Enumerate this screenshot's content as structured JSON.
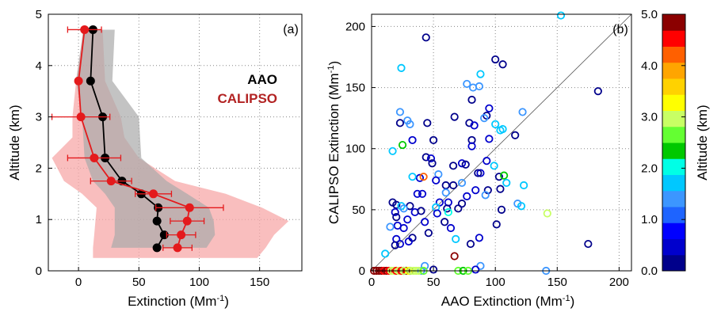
{
  "chart_data": [
    {
      "type": "line",
      "panel_label": "(a)",
      "xlabel": "Extinction (Mm",
      "xlabel_sup": "-1",
      "xlabel_end": ")",
      "ylabel": "Altitude (km)",
      "xlim": [
        -25,
        185
      ],
      "ylim": [
        0,
        5
      ],
      "xticks": [
        0,
        50,
        100,
        150
      ],
      "yticks": [
        0,
        1,
        2,
        3,
        4,
        5
      ],
      "grid": "dotted",
      "legend_position": "right",
      "series": [
        {
          "name": "AAO",
          "color": "#000000",
          "band_color": "#a9a9a9",
          "points": [
            {
              "alt": 0.45,
              "ext": 65
            },
            {
              "alt": 0.7,
              "ext": 71
            },
            {
              "alt": 0.97,
              "ext": 65
            },
            {
              "alt": 1.23,
              "ext": 66
            },
            {
              "alt": 1.5,
              "ext": 52
            },
            {
              "alt": 1.75,
              "ext": 36
            },
            {
              "alt": 2.2,
              "ext": 22
            },
            {
              "alt": 3.0,
              "ext": 20
            },
            {
              "alt": 3.7,
              "ext": 10
            },
            {
              "alt": 4.7,
              "ext": 12
            }
          ],
          "band": [
            {
              "alt": 0.45,
              "lo": 27,
              "hi": 106
            },
            {
              "alt": 0.7,
              "lo": 30,
              "hi": 113
            },
            {
              "alt": 0.97,
              "lo": 30,
              "hi": 112
            },
            {
              "alt": 1.23,
              "lo": 30,
              "hi": 108
            },
            {
              "alt": 1.5,
              "lo": 22,
              "hi": 90
            },
            {
              "alt": 1.75,
              "lo": 12,
              "hi": 73
            },
            {
              "alt": 2.2,
              "lo": 5,
              "hi": 52
            },
            {
              "alt": 3.0,
              "lo": 3,
              "hi": 50
            },
            {
              "alt": 3.7,
              "lo": -2,
              "hi": 28
            },
            {
              "alt": 4.7,
              "lo": 4,
              "hi": 30
            }
          ]
        },
        {
          "name": "CALIPSO",
          "color": "#e41a1c",
          "band_color": "#f7a8a8",
          "points": [
            {
              "alt": 0.45,
              "ext": 82,
              "err": 12
            },
            {
              "alt": 0.7,
              "ext": 85,
              "err": 12
            },
            {
              "alt": 0.97,
              "ext": 90,
              "err": 14
            },
            {
              "alt": 1.23,
              "ext": 92,
              "err": 28
            },
            {
              "alt": 1.5,
              "ext": 62,
              "err": 15
            },
            {
              "alt": 1.75,
              "ext": 27,
              "err": 17
            },
            {
              "alt": 2.2,
              "ext": 13,
              "err": 22
            },
            {
              "alt": 3.0,
              "ext": 2,
              "err": 24
            },
            {
              "alt": 3.7,
              "ext": 0,
              "err": 2
            },
            {
              "alt": 4.7,
              "ext": 5,
              "err": 14
            }
          ],
          "band": [
            {
              "alt": 0.25,
              "lo": 12,
              "hi": 148
            },
            {
              "alt": 0.45,
              "lo": 12,
              "hi": 155
            },
            {
              "alt": 0.7,
              "lo": 13,
              "hi": 162
            },
            {
              "alt": 0.97,
              "lo": 14,
              "hi": 174
            },
            {
              "alt": 1.23,
              "lo": 15,
              "hi": 152
            },
            {
              "alt": 1.5,
              "lo": 3,
              "hi": 122
            },
            {
              "alt": 1.75,
              "lo": -12,
              "hi": 80
            },
            {
              "alt": 2.2,
              "lo": -22,
              "hi": 50
            },
            {
              "alt": 2.6,
              "lo": -5,
              "hi": 38
            },
            {
              "alt": 3.0,
              "lo": -5,
              "hi": 35
            },
            {
              "alt": 3.7,
              "lo": -2,
              "hi": 22
            },
            {
              "alt": 4.7,
              "lo": 4,
              "hi": 20
            }
          ]
        }
      ]
    },
    {
      "type": "scatter",
      "panel_label": "(b)",
      "xlabel": "AAO Extinction (Mm",
      "xlabel_sup": "-1",
      "xlabel_end": ")",
      "ylabel": "CALIPSO Extinction (Mm",
      "ylabel_sup": "-1",
      "ylabel_end": ")",
      "xlim": [
        0,
        210
      ],
      "ylim": [
        0,
        210
      ],
      "xticks": [
        0,
        50,
        100,
        150,
        200
      ],
      "yticks": [
        0,
        50,
        100,
        150,
        200
      ],
      "grid": "dotted",
      "reference_line": "1:1",
      "colorbar": {
        "label": "Altitude (km)",
        "min": 0,
        "max": 5,
        "ticks": [
          "0.0",
          "1.0",
          "2.0",
          "3.0",
          "4.0",
          "5.0"
        ],
        "colors": [
          "#00008b",
          "#0000cd",
          "#0000ff",
          "#1e64ff",
          "#3c96ff",
          "#00c8ff",
          "#00ffe6",
          "#00c800",
          "#64ff32",
          "#c8ff64",
          "#ffff00",
          "#ffd200",
          "#ffa500",
          "#ff6000",
          "#ff0000",
          "#8b0000"
        ]
      },
      "points": [
        [
          153,
          209,
          1.8
        ],
        [
          44,
          191,
          0.3
        ],
        [
          100,
          173,
          0.3
        ],
        [
          106,
          169,
          0.3
        ],
        [
          24,
          166,
          1.7
        ],
        [
          88,
          161,
          1.7
        ],
        [
          183,
          147,
          0.3
        ],
        [
          77,
          153,
          1.3
        ],
        [
          87,
          151,
          1.4
        ],
        [
          82,
          150,
          1.3
        ],
        [
          81,
          140,
          0.3
        ],
        [
          95,
          133,
          0.6
        ],
        [
          93,
          127,
          0.3
        ],
        [
          91,
          125,
          1.3
        ],
        [
          23,
          130,
          1.4
        ],
        [
          67,
          126,
          0.3
        ],
        [
          29,
          123,
          1.4
        ],
        [
          31,
          120,
          1.5
        ],
        [
          122,
          130,
          1.4
        ],
        [
          23,
          121,
          0.3
        ],
        [
          45,
          121,
          0.3
        ],
        [
          79,
          121,
          0.3
        ],
        [
          83,
          119,
          0.6
        ],
        [
          100,
          120,
          1.7
        ],
        [
          104,
          115,
          1.7
        ],
        [
          106,
          116,
          1.6
        ],
        [
          116,
          111,
          0.3
        ],
        [
          33,
          107,
          0.4
        ],
        [
          50,
          107,
          0.3
        ],
        [
          81,
          107,
          0.3
        ],
        [
          95,
          108,
          0.6
        ],
        [
          25,
          103,
          2.4
        ],
        [
          17,
          98,
          1.7
        ],
        [
          81,
          102,
          0.4
        ],
        [
          44,
          93,
          0.3
        ],
        [
          48,
          92,
          0.6
        ],
        [
          49,
          88,
          0.3
        ],
        [
          73,
          88,
          0.4
        ],
        [
          76,
          87,
          0.3
        ],
        [
          66,
          86,
          0.3
        ],
        [
          93,
          90,
          0.6
        ],
        [
          99,
          86,
          1.6
        ],
        [
          88,
          80,
          0.4
        ],
        [
          86,
          80,
          0.3
        ],
        [
          54,
          79,
          1.4
        ],
        [
          39,
          76,
          0.5
        ],
        [
          103,
          77,
          0.3
        ],
        [
          107,
          78,
          2.3
        ],
        [
          33,
          77,
          1.6
        ],
        [
          42,
          77,
          4.3
        ],
        [
          52,
          74,
          0.4
        ],
        [
          60,
          70,
          0.3
        ],
        [
          66,
          70,
          0.3
        ],
        [
          73,
          72,
          1.3
        ],
        [
          109,
          72,
          1.6
        ],
        [
          123,
          70,
          1.6
        ],
        [
          104,
          67,
          0.3
        ],
        [
          94,
          66,
          0.3
        ],
        [
          84,
          66,
          0.4
        ],
        [
          92,
          62,
          1.4
        ],
        [
          77,
          61,
          0.4
        ],
        [
          37,
          63,
          0.5
        ],
        [
          41,
          63,
          0.6
        ],
        [
          60,
          64,
          1.4
        ],
        [
          55,
          56,
          0.4
        ],
        [
          62,
          56,
          0.5
        ],
        [
          73,
          55,
          0.3
        ],
        [
          118,
          55,
          1.4
        ],
        [
          121,
          53,
          1.6
        ],
        [
          17,
          56,
          0.3
        ],
        [
          20,
          54,
          0.3
        ],
        [
          24,
          53,
          1.6
        ],
        [
          31,
          53,
          0.3
        ],
        [
          26,
          51,
          1.5
        ],
        [
          52,
          52,
          1.6
        ],
        [
          61,
          51,
          0.3
        ],
        [
          70,
          51,
          0.3
        ],
        [
          105,
          50,
          0.3
        ],
        [
          19,
          48,
          0.5
        ],
        [
          35,
          48,
          0.6
        ],
        [
          40,
          49,
          0.3
        ],
        [
          62,
          48,
          2.1
        ],
        [
          142,
          47,
          2.9
        ],
        [
          53,
          47,
          0.5
        ],
        [
          20,
          44,
          0.3
        ],
        [
          29,
          42,
          0.5
        ],
        [
          43,
          40,
          0.4
        ],
        [
          59,
          40,
          0.3
        ],
        [
          21,
          37,
          0.4
        ],
        [
          15,
          36,
          1.3
        ],
        [
          26,
          35,
          0.4
        ],
        [
          64,
          35,
          0.5
        ],
        [
          101,
          38,
          0.3
        ],
        [
          46,
          31,
          0.3
        ],
        [
          87,
          27,
          0.4
        ],
        [
          68,
          26,
          1.6
        ],
        [
          33,
          27,
          0.3
        ],
        [
          20,
          26,
          0.5
        ],
        [
          23,
          22,
          0.4
        ],
        [
          19,
          21,
          0.3
        ],
        [
          30,
          24,
          0.5
        ],
        [
          80,
          22,
          0.3
        ],
        [
          175,
          22,
          0.3
        ],
        [
          11,
          14,
          1.6
        ],
        [
          67,
          12,
          4.8
        ],
        [
          43,
          4,
          1.4
        ],
        [
          88,
          4,
          1.5
        ],
        [
          50,
          1,
          0.3
        ],
        [
          84,
          1,
          0.5
        ],
        [
          141,
          0,
          1.5
        ],
        [
          40,
          0,
          1.4
        ],
        [
          31,
          0,
          0.3
        ],
        [
          28,
          0,
          4.8
        ],
        [
          26,
          0,
          0.5
        ],
        [
          2,
          0,
          4.8
        ],
        [
          4,
          0,
          4.8
        ],
        [
          6,
          0,
          4.8
        ],
        [
          8,
          0,
          4.8
        ],
        [
          10,
          0,
          4.6
        ],
        [
          12,
          0,
          4.8
        ],
        [
          14,
          0,
          4.6
        ],
        [
          16,
          0,
          3.1
        ],
        [
          18,
          0,
          3.0
        ],
        [
          20,
          0,
          4.6
        ],
        [
          22,
          0,
          3.0
        ],
        [
          24,
          0,
          4.6
        ],
        [
          26,
          0,
          3.0
        ],
        [
          30,
          0,
          3.2
        ],
        [
          32,
          0,
          3.0
        ],
        [
          34,
          0,
          3.0
        ],
        [
          36,
          0,
          2.9
        ],
        [
          38,
          0,
          2.9
        ],
        [
          42,
          0,
          2.8
        ],
        [
          70,
          0,
          2.6
        ],
        [
          74,
          0,
          2.2
        ],
        [
          78,
          0,
          2.6
        ]
      ]
    }
  ]
}
